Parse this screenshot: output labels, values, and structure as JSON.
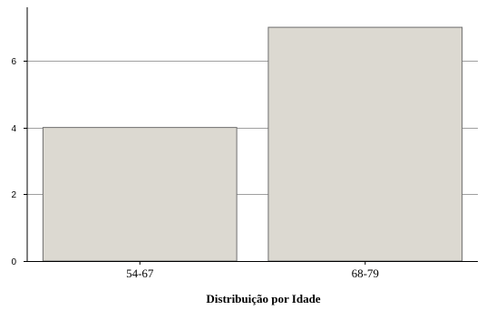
{
  "chart_data": {
    "type": "bar",
    "title": "",
    "xlabel": "Distribuição por Idade",
    "ylabel": "",
    "categories": [
      "54-67",
      "68-79"
    ],
    "values": [
      4,
      7
    ],
    "ylim": [
      0,
      7.6
    ],
    "yticks": [
      0,
      2,
      4,
      6
    ],
    "grid": true,
    "bar_color": "#dcd9d1",
    "bar_edge_color": "#6e6e6e",
    "grid_color": "#a0a0a0"
  }
}
